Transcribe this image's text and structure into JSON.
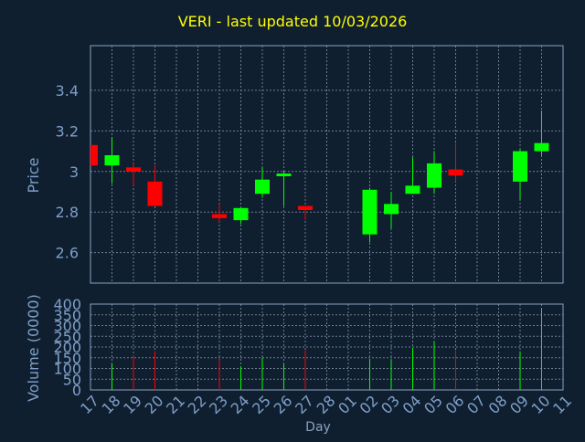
{
  "chart_data": {
    "type": "candlestick",
    "title": "VERI - last updated 10/03/2026",
    "price_panel": {
      "ylabel": "Price",
      "ylim": [
        2.45,
        3.62
      ],
      "yticks": [
        "2.6",
        "2.8",
        "3",
        "3.2",
        "3.4"
      ],
      "grid": true
    },
    "volume_panel": {
      "ylabel": "Volume (0000)",
      "ylim": [
        0,
        400
      ],
      "yticks": [
        "0",
        "50",
        "100",
        "150",
        "200",
        "250",
        "300",
        "350",
        "400"
      ],
      "grid": true
    },
    "xlabel": "Day",
    "x_ticks": [
      "17",
      "18",
      "19",
      "20",
      "21",
      "22",
      "23",
      "24",
      "25",
      "26",
      "27",
      "28",
      "01",
      "02",
      "03",
      "04",
      "05",
      "06",
      "07",
      "08",
      "09",
      "10",
      "11"
    ],
    "candles": [
      {
        "day": "17",
        "open": 3.13,
        "high": 3.13,
        "low": 3.03,
        "close": 3.03,
        "volume": 0
      },
      {
        "day": "18",
        "open": 3.03,
        "high": 3.17,
        "low": 2.94,
        "close": 3.08,
        "volume": 120
      },
      {
        "day": "19",
        "open": 3.02,
        "high": 3.04,
        "low": 2.93,
        "close": 3.0,
        "volume": 160
      },
      {
        "day": "20",
        "open": 2.95,
        "high": 3.03,
        "low": 2.83,
        "close": 2.83,
        "volume": 180
      },
      {
        "day": "23",
        "open": 2.79,
        "high": 2.84,
        "low": 2.75,
        "close": 2.77,
        "volume": 140
      },
      {
        "day": "24",
        "open": 2.76,
        "high": 2.82,
        "low": 2.74,
        "close": 2.82,
        "volume": 110
      },
      {
        "day": "25",
        "open": 2.89,
        "high": 3.02,
        "low": 2.87,
        "close": 2.96,
        "volume": 150
      },
      {
        "day": "26",
        "open": 2.98,
        "high": 3.0,
        "low": 2.83,
        "close": 2.99,
        "volume": 120
      },
      {
        "day": "27",
        "open": 2.83,
        "high": 2.83,
        "low": 2.76,
        "close": 2.81,
        "volume": 185
      },
      {
        "day": "02",
        "open": 2.69,
        "high": 2.92,
        "low": 2.65,
        "close": 2.91,
        "volume": 145
      },
      {
        "day": "03",
        "open": 2.79,
        "high": 2.9,
        "low": 2.72,
        "close": 2.84,
        "volume": 140
      },
      {
        "day": "04",
        "open": 2.89,
        "high": 3.07,
        "low": 2.89,
        "close": 2.93,
        "volume": 195
      },
      {
        "day": "05",
        "open": 2.92,
        "high": 3.1,
        "low": 2.89,
        "close": 3.04,
        "volume": 225
      },
      {
        "day": "06",
        "open": 3.01,
        "high": 3.14,
        "low": 2.95,
        "close": 2.98,
        "volume": 185
      },
      {
        "day": "09",
        "open": 2.95,
        "high": 3.11,
        "low": 2.86,
        "close": 3.1,
        "volume": 180
      },
      {
        "day": "10",
        "open": 3.1,
        "high": 3.3,
        "low": 3.08,
        "close": 3.14,
        "volume": 380
      }
    ],
    "colors": {
      "background": "#0f1f30",
      "plot_border": "#8aa2c0",
      "grid": "#6e7f93",
      "axis_text": "#7f9fc8",
      "title": "#ffff00",
      "up": "#00ff00",
      "down": "#ff0000"
    }
  }
}
